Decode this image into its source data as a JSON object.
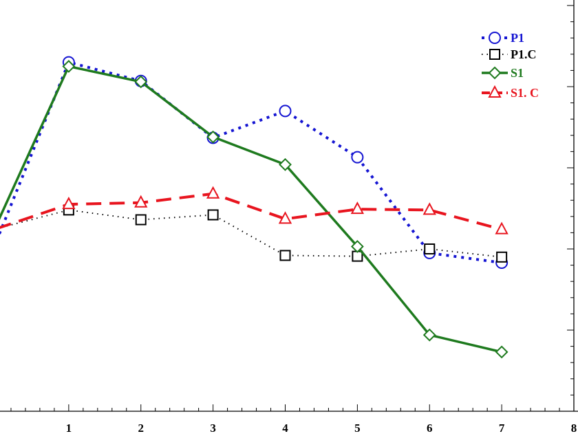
{
  "chart_data": {
    "type": "line",
    "title": "",
    "xlabel": "",
    "ylabel": "",
    "xlim": [
      0,
      8
    ],
    "ylim": [
      0,
      5
    ],
    "x_ticks": [
      "1",
      "2",
      "3",
      "4",
      "5",
      "6",
      "7",
      "8"
    ],
    "grid": false,
    "legend_position": "top-right",
    "series": [
      {
        "name": "P1",
        "color": "#1414d2",
        "line_style": "dotted",
        "marker": "circle",
        "x": [
          0,
          1,
          2,
          3,
          4,
          5,
          6,
          7
        ],
        "y": [
          2.1,
          4.3,
          4.07,
          3.37,
          3.7,
          3.13,
          1.95,
          1.83
        ]
      },
      {
        "name": "P1.C",
        "color": "#000000",
        "line_style": "dotted-fine",
        "marker": "square",
        "x": [
          0,
          1,
          2,
          3,
          4,
          5,
          6,
          7
        ],
        "y": [
          2.25,
          2.48,
          2.36,
          2.42,
          1.92,
          1.91,
          2.0,
          1.9
        ]
      },
      {
        "name": "S1",
        "color": "#1e7a1e",
        "line_style": "solid",
        "marker": "diamond",
        "x": [
          0,
          1,
          2,
          3,
          4,
          5,
          6,
          7
        ],
        "y": [
          2.3,
          4.25,
          4.06,
          3.38,
          3.04,
          2.03,
          0.94,
          0.73
        ]
      },
      {
        "name": "S1. C",
        "color": "#e8141e",
        "line_style": "dashed",
        "marker": "triangle",
        "x": [
          0,
          1,
          2,
          3,
          4,
          5,
          6,
          7
        ],
        "y": [
          2.25,
          2.55,
          2.57,
          2.68,
          2.37,
          2.49,
          2.48,
          2.24
        ]
      }
    ]
  }
}
